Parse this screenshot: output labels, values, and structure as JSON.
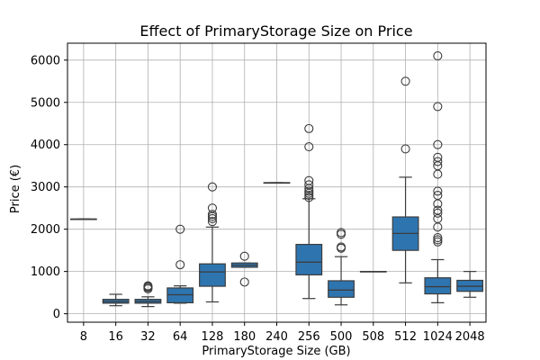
{
  "chart_data": {
    "type": "box",
    "title": "Effect of PrimaryStorage Size on Price",
    "xlabel": "PrimaryStorage Size (GB)",
    "ylabel": "Price (€)",
    "ylim": [
      -200,
      6400
    ],
    "yticks": [
      0,
      1000,
      2000,
      3000,
      4000,
      5000,
      6000
    ],
    "grid": true,
    "box_color": "#2e75b0",
    "categories": [
      "8",
      "16",
      "32",
      "64",
      "128",
      "180",
      "240",
      "256",
      "500",
      "508",
      "512",
      "1024",
      "2048"
    ],
    "boxes": [
      {
        "category": "8",
        "whislo": 2240,
        "q1": 2240,
        "med": 2240,
        "q3": 2240,
        "whishi": 2240,
        "fliers": []
      },
      {
        "category": "16",
        "whislo": 190,
        "q1": 250,
        "med": 290,
        "q3": 340,
        "whishi": 460,
        "fliers": []
      },
      {
        "category": "32",
        "whislo": 170,
        "q1": 250,
        "med": 290,
        "q3": 340,
        "whishi": 400,
        "fliers": [
          590,
          620,
          640,
          660
        ]
      },
      {
        "category": "64",
        "whislo": 250,
        "q1": 260,
        "med": 450,
        "q3": 610,
        "whishi": 660,
        "fliers": [
          1160,
          2000
        ]
      },
      {
        "category": "128",
        "whislo": 280,
        "q1": 650,
        "med": 990,
        "q3": 1180,
        "whishi": 2050,
        "fliers": [
          2180,
          2250,
          2300,
          2350,
          2500,
          3000
        ]
      },
      {
        "category": "180",
        "whislo": 1100,
        "q1": 1100,
        "med": 1150,
        "q3": 1200,
        "whishi": 1200,
        "fliers": [
          750,
          1360
        ]
      },
      {
        "category": "240",
        "whislo": 3100,
        "q1": 3100,
        "med": 3100,
        "q3": 3100,
        "whishi": 3100,
        "fliers": []
      },
      {
        "category": "256",
        "whislo": 360,
        "q1": 920,
        "med": 1220,
        "q3": 1640,
        "whishi": 2720,
        "fliers": [
          2750,
          2800,
          2850,
          2900,
          2960,
          3050,
          3150,
          3950,
          4380
        ]
      },
      {
        "category": "500",
        "whislo": 210,
        "q1": 390,
        "med": 560,
        "q3": 780,
        "whishi": 1350,
        "fliers": [
          1550,
          1580,
          1880,
          1920
        ]
      },
      {
        "category": "508",
        "whislo": 1000,
        "q1": 1000,
        "med": 1000,
        "q3": 1000,
        "whishi": 1000,
        "fliers": []
      },
      {
        "category": "512",
        "whislo": 730,
        "q1": 1500,
        "med": 1900,
        "q3": 2290,
        "whishi": 3230,
        "fliers": [
          3900,
          5500
        ]
      },
      {
        "category": "1024",
        "whislo": 260,
        "q1": 470,
        "med": 640,
        "q3": 850,
        "whishi": 1280,
        "fliers": [
          1700,
          1750,
          1800,
          2050,
          2250,
          2380,
          2450,
          2600,
          2800,
          2900,
          3300,
          3500,
          3600,
          3700,
          4000,
          4900,
          6100
        ]
      },
      {
        "category": "2048",
        "whislo": 390,
        "q1": 530,
        "med": 650,
        "q3": 790,
        "whishi": 1000,
        "fliers": []
      }
    ]
  }
}
